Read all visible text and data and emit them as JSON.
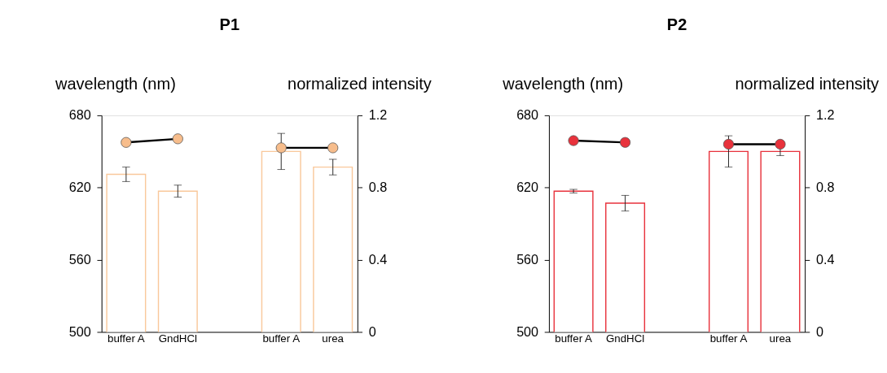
{
  "chart_data": [
    {
      "type": "bar",
      "title": "P1",
      "ylabel": "wavelength (nm)",
      "y2label": "normalized intensity",
      "categories": [
        "buffer A",
        "GndHCl",
        null,
        "buffer A",
        "urea"
      ],
      "ylim": [
        500,
        680
      ],
      "yticks": [
        500,
        560,
        620,
        680
      ],
      "y2lim": [
        0,
        1.2
      ],
      "y2ticks": [
        0,
        0.4,
        0.8,
        1.2
      ],
      "grid": false,
      "marker": "circle",
      "series": [
        {
          "color": "#f9c89b",
          "values": [
            631,
            617,
            null,
            650,
            637
          ],
          "errors": [
            6,
            5,
            null,
            15,
            6.5
          ]
        },
        {
          "type": "line",
          "axis": "y2",
          "color": "#f7bd8c",
          "values": [
            1.05,
            1.07,
            null,
            1.02,
            1.02
          ]
        }
      ]
    },
    {
      "type": "bar",
      "title": "P2",
      "ylabel": "wavelength (nm)",
      "y2label": "normalized intensity",
      "categories": [
        "buffer A",
        "GndHCl",
        null,
        "buffer A",
        "urea"
      ],
      "ylim": [
        500,
        680
      ],
      "yticks": [
        500,
        560,
        620,
        680
      ],
      "y2lim": [
        0,
        1.2
      ],
      "y2ticks": [
        0,
        0.4,
        0.8,
        1.2
      ],
      "grid": false,
      "marker": "circle",
      "series": [
        {
          "color": "#e8323c",
          "values": [
            617,
            607,
            null,
            650,
            650
          ],
          "errors": [
            1.5,
            6.5,
            null,
            13,
            3.5
          ]
        },
        {
          "type": "line",
          "axis": "y2",
          "color": "#e8323c",
          "values": [
            1.06,
            1.05,
            null,
            1.04,
            1.04
          ]
        }
      ]
    }
  ]
}
